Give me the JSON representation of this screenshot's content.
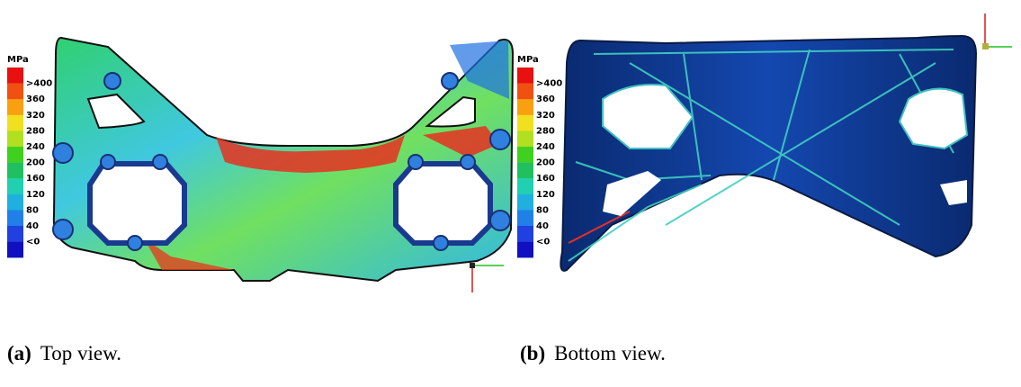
{
  "panels": [
    {
      "legend": {
        "unit": "MPa",
        "labels": [
          ">400",
          "360",
          "320",
          "280",
          "240",
          "200",
          "160",
          "120",
          "80",
          "40",
          "<0"
        ]
      },
      "caption": {
        "label": "(a)",
        "text": "Top view."
      }
    },
    {
      "legend": {
        "unit": "MPa",
        "labels": [
          ">400",
          "360",
          "320",
          "280",
          "240",
          "200",
          "160",
          "120",
          "80",
          "40",
          "<0"
        ]
      },
      "caption": {
        "label": "(b)",
        "text": "Bottom view."
      }
    }
  ]
}
